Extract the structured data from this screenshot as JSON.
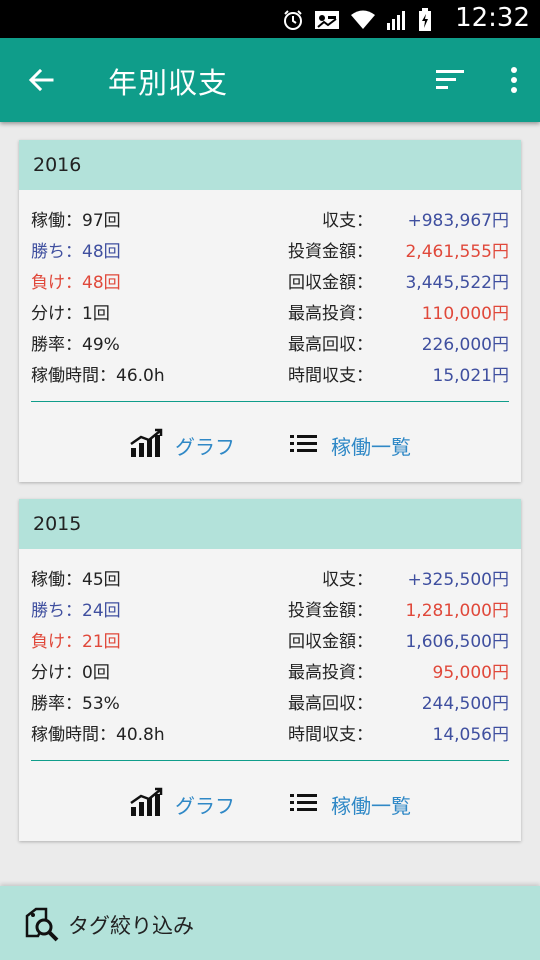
{
  "status_bar": {
    "time": "12:32",
    "icons": [
      "alarm-icon",
      "photo-icon",
      "wifi-icon",
      "signal-icon",
      "battery-icon"
    ]
  },
  "app_bar": {
    "title": "年別収支",
    "icons": [
      "back-arrow-icon",
      "sort-icon",
      "more-vert-icon"
    ]
  },
  "years": [
    {
      "year": "2016",
      "left": [
        {
          "text": "稼働：97回",
          "style": "normal"
        },
        {
          "text": "勝ち：48回",
          "style": "blue"
        },
        {
          "text": "負け：48回",
          "style": "red"
        },
        {
          "text": "分け：1回",
          "style": "normal"
        },
        {
          "text": "勝率：49%",
          "style": "normal"
        },
        {
          "text": "稼働時間：46.0h",
          "style": "normal"
        }
      ],
      "right": [
        {
          "label": "収支：",
          "value": "+983,967円",
          "color": "blue"
        },
        {
          "label": "投資金額：",
          "value": "2,461,555円",
          "color": "red"
        },
        {
          "label": "回収金額：",
          "value": "3,445,522円",
          "color": "blue"
        },
        {
          "label": "最高投資：",
          "value": "110,000円",
          "color": "red"
        },
        {
          "label": "最高回収：",
          "value": "226,000円",
          "color": "blue"
        },
        {
          "label": "時間収支：",
          "value": "15,021円",
          "color": "blue"
        }
      ],
      "graph_label": "グラフ",
      "list_label": "稼働一覧"
    },
    {
      "year": "2015",
      "left": [
        {
          "text": "稼働：45回",
          "style": "normal"
        },
        {
          "text": "勝ち：24回",
          "style": "blue"
        },
        {
          "text": "負け：21回",
          "style": "red"
        },
        {
          "text": "分け：0回",
          "style": "normal"
        },
        {
          "text": "勝率：53%",
          "style": "normal"
        },
        {
          "text": "稼働時間：40.8h",
          "style": "normal"
        }
      ],
      "right": [
        {
          "label": "収支：",
          "value": "+325,500円",
          "color": "blue"
        },
        {
          "label": "投資金額：",
          "value": "1,281,000円",
          "color": "red"
        },
        {
          "label": "回収金額：",
          "value": "1,606,500円",
          "color": "blue"
        },
        {
          "label": "最高投資：",
          "value": "95,000円",
          "color": "red"
        },
        {
          "label": "最高回収：",
          "value": "244,500円",
          "color": "blue"
        },
        {
          "label": "時間収支：",
          "value": "14,056円",
          "color": "blue"
        }
      ],
      "graph_label": "グラフ",
      "list_label": "稼働一覧"
    }
  ],
  "footer": {
    "label": "タグ絞り込み",
    "icon": "tag-search-icon"
  },
  "colors": {
    "primary": "#0f9d8a",
    "card_header": "#b3e2da",
    "blue_text": "#3f4f9f",
    "red_text": "#e0483a",
    "link": "#2f88c6"
  }
}
